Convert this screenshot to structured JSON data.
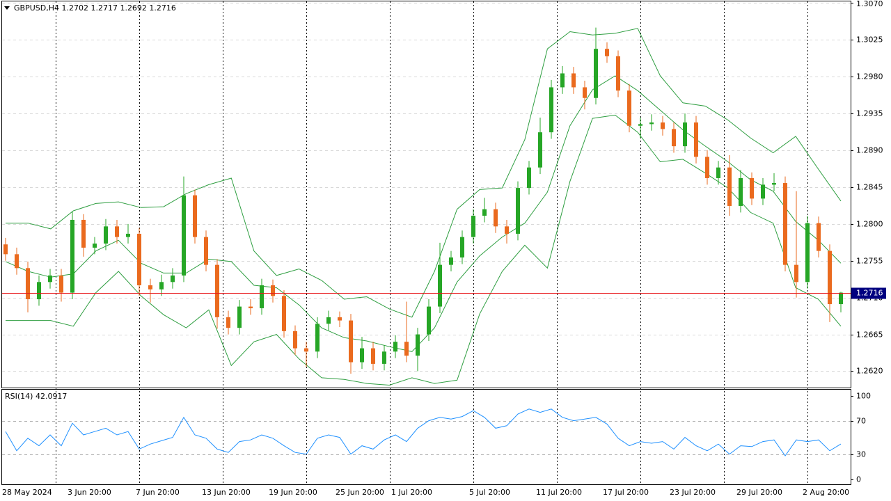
{
  "chart_data": [
    {
      "type": "candlestick",
      "title": "GBPUSD,H4  1.2702 1.2717 1.2692 1.2716",
      "up_color": "#26a626",
      "down_color": "#ea6a1e",
      "band_color": "#2e9e40",
      "last_price_color": "#e8181c",
      "ylim": [
        1.26,
        1.3072
      ],
      "yticks": [
        {
          "value": 1.307,
          "label": "1.3070"
        },
        1.3025,
        {
          "value": 1.298,
          "label": "1.2980"
        },
        1.2935,
        {
          "value": 1.289,
          "label": "1.2890"
        },
        1.2845,
        {
          "value": 1.28,
          "label": "1.2800"
        },
        1.2755,
        {
          "value": 1.271,
          "label": "1.2710"
        },
        1.2665,
        {
          "value": 1.262,
          "label": "1.2620"
        }
      ],
      "grid": true,
      "last_price": 1.2716,
      "x_labels": [
        "28 May 2024",
        "3 Jun 20:00",
        "7 Jun 20:00",
        "13 Jun 20:00",
        "19 Jun 20:00",
        "25 Jun 20:00",
        "1 Jul 20:00",
        "5 Jul 20:00",
        "11 Jul 20:00",
        "17 Jul 20:00",
        "23 Jul 20:00",
        "29 Jul 20:00",
        "2 Aug 20:00"
      ],
      "open": [
        1.2775,
        1.2763,
        1.2746,
        1.2708,
        1.2729,
        1.2737,
        1.2716,
        1.2805,
        1.2771,
        1.2776,
        1.2797,
        1.2784,
        1.2788,
        1.2725,
        1.272,
        1.2729,
        1.2737,
        1.2835,
        1.2784,
        1.275,
        1.2686,
        1.2673,
        1.2699,
        1.2697,
        1.2725,
        1.2712,
        1.2669,
        1.2648,
        1.2644,
        1.2678,
        1.2686,
        1.2682,
        1.2631,
        1.2648,
        1.2629,
        1.2644,
        1.2656,
        1.2639,
        1.2665,
        1.2699,
        1.275,
        1.2759,
        1.2784,
        1.281,
        1.2818,
        1.2797,
        1.2788,
        1.2844,
        1.2869,
        1.2912,
        1.2967,
        1.2984,
        1.2967,
        1.2954,
        1.3014,
        1.3005,
        1.2963,
        1.292,
        1.2922,
        1.2924,
        1.2916,
        1.2895,
        1.2924,
        1.2882,
        1.2856,
        1.2869,
        1.2822,
        1.2856,
        1.2831,
        1.2848,
        1.285,
        1.275,
        1.2729,
        1.2801,
        1.2767,
        1.2702
      ],
      "high": [
        1.2783,
        1.2771,
        1.2754,
        1.2737,
        1.2745,
        1.2745,
        1.2815,
        1.2812,
        1.2784,
        1.2806,
        1.2805,
        1.28,
        1.2795,
        1.2733,
        1.2738,
        1.2746,
        1.2858,
        1.2842,
        1.2792,
        1.2757,
        1.2694,
        1.2707,
        1.2708,
        1.2733,
        1.2732,
        1.2719,
        1.2676,
        1.2656,
        1.2686,
        1.2694,
        1.2693,
        1.269,
        1.2662,
        1.2656,
        1.2652,
        1.2664,
        1.2705,
        1.2673,
        1.2708,
        1.2777,
        1.2767,
        1.2792,
        1.2818,
        1.2832,
        1.2826,
        1.2805,
        1.2852,
        1.2877,
        1.293,
        1.2976,
        1.2993,
        1.2992,
        1.2975,
        1.304,
        1.3022,
        1.3012,
        1.2971,
        1.293,
        1.2934,
        1.2932,
        1.2924,
        1.2935,
        1.2932,
        1.289,
        1.2877,
        1.2884,
        1.2866,
        1.2863,
        1.2856,
        1.2862,
        1.2858,
        1.284,
        1.281,
        1.2809,
        1.2775,
        1.2717
      ],
      "low": [
        1.2755,
        1.2738,
        1.2692,
        1.27,
        1.2721,
        1.2705,
        1.2708,
        1.276,
        1.2763,
        1.2768,
        1.2776,
        1.2776,
        1.2712,
        1.2704,
        1.2712,
        1.2721,
        1.2729,
        1.2776,
        1.2742,
        1.2672,
        1.2665,
        1.2665,
        1.2689,
        1.2689,
        1.2704,
        1.2661,
        1.264,
        1.2625,
        1.2636,
        1.267,
        1.2674,
        1.2617,
        1.2623,
        1.2621,
        1.2621,
        1.2636,
        1.2631,
        1.262,
        1.2657,
        1.2691,
        1.2742,
        1.2751,
        1.2776,
        1.2802,
        1.2789,
        1.2776,
        1.278,
        1.2836,
        1.2861,
        1.2904,
        1.2959,
        1.2959,
        1.294,
        1.2946,
        1.2997,
        1.2955,
        1.2912,
        1.2905,
        1.2914,
        1.2908,
        1.2887,
        1.2887,
        1.2874,
        1.2848,
        1.2848,
        1.281,
        1.2814,
        1.2823,
        1.2823,
        1.284,
        1.2742,
        1.271,
        1.2721,
        1.2759,
        1.268,
        1.2692
      ],
      "close": [
        1.2763,
        1.2746,
        1.2708,
        1.2729,
        1.2737,
        1.2716,
        1.2805,
        1.2771,
        1.2776,
        1.2797,
        1.2784,
        1.2788,
        1.2725,
        1.272,
        1.2729,
        1.2737,
        1.2835,
        1.2784,
        1.275,
        1.2686,
        1.2673,
        1.2699,
        1.2697,
        1.2725,
        1.2712,
        1.2669,
        1.2648,
        1.2644,
        1.2678,
        1.2686,
        1.2682,
        1.2631,
        1.2648,
        1.2629,
        1.2644,
        1.2656,
        1.2639,
        1.2665,
        1.2699,
        1.275,
        1.2759,
        1.2784,
        1.281,
        1.2818,
        1.2797,
        1.2788,
        1.2844,
        1.2869,
        1.2912,
        1.2967,
        1.2984,
        1.2967,
        1.2954,
        1.3014,
        1.3005,
        1.2963,
        1.292,
        1.2922,
        1.2924,
        1.2916,
        1.2895,
        1.2924,
        1.2882,
        1.2856,
        1.2869,
        1.2822,
        1.2856,
        1.2831,
        1.2848,
        1.285,
        1.275,
        1.2729,
        1.2801,
        1.2767,
        1.2702,
        1.2716
      ],
      "bands": {
        "upper": [
          1.2801,
          1.2801,
          1.2794,
          1.2816,
          1.2825,
          1.2827,
          1.282,
          1.2821,
          1.2837,
          1.2848,
          1.2856,
          1.2767,
          1.2737,
          1.2745,
          1.2731,
          1.2708,
          1.2711,
          1.2696,
          1.2686,
          1.2742,
          1.2818,
          1.2842,
          1.2844,
          1.2903,
          1.3014,
          1.3035,
          1.3031,
          1.3033,
          1.3039,
          1.2981,
          1.2948,
          1.2944,
          1.2927,
          1.2905,
          1.2887,
          1.2907,
          1.2867,
          1.2828
        ],
        "middle": [
          1.2754,
          1.2742,
          1.2735,
          1.2739,
          1.2767,
          1.278,
          1.2752,
          1.274,
          1.274,
          1.2757,
          1.2754,
          1.2725,
          1.2722,
          1.2701,
          1.2673,
          1.2661,
          1.2657,
          1.265,
          1.2644,
          1.2673,
          1.2729,
          1.2761,
          1.2784,
          1.2801,
          1.2839,
          1.292,
          1.2964,
          1.2981,
          1.2963,
          1.2939,
          1.2915,
          1.2895,
          1.2876,
          1.2854,
          1.284,
          1.2803,
          1.278,
          1.2752
        ],
        "lower": [
          1.2682,
          1.2682,
          1.2682,
          1.2675,
          1.2716,
          1.2742,
          1.2712,
          1.2689,
          1.2673,
          1.2695,
          1.2627,
          1.2656,
          1.2665,
          1.2635,
          1.2612,
          1.261,
          1.2605,
          1.2603,
          1.2612,
          1.2605,
          1.2609,
          1.269,
          1.2742,
          1.2774,
          1.2746,
          1.2852,
          1.2929,
          1.2933,
          1.2912,
          1.2876,
          1.2879,
          1.2862,
          1.2844,
          1.2814,
          1.2801,
          1.2722,
          1.2708,
          1.2675
        ]
      }
    },
    {
      "type": "line",
      "title": "RSI(14) 42.0917",
      "color": "#1e90ff",
      "ylim": [
        -7,
        108
      ],
      "yticks": [
        0,
        30,
        70,
        100
      ],
      "levels": [
        30,
        70
      ],
      "values": [
        57,
        34,
        49,
        40,
        53,
        40,
        67,
        53,
        57,
        61,
        53,
        57,
        36,
        42,
        46,
        50,
        74,
        53,
        49,
        36,
        32,
        45,
        47,
        53,
        49,
        40,
        32,
        30,
        49,
        53,
        50,
        30,
        40,
        36,
        47,
        53,
        45,
        61,
        70,
        74,
        72,
        75,
        82,
        74,
        61,
        64,
        78,
        84,
        80,
        84,
        74,
        70,
        72,
        74,
        66,
        49,
        40,
        45,
        43,
        45,
        36,
        50,
        40,
        34,
        42,
        30,
        40,
        39,
        45,
        47,
        28,
        47,
        45,
        47,
        34,
        42.0917
      ]
    }
  ]
}
